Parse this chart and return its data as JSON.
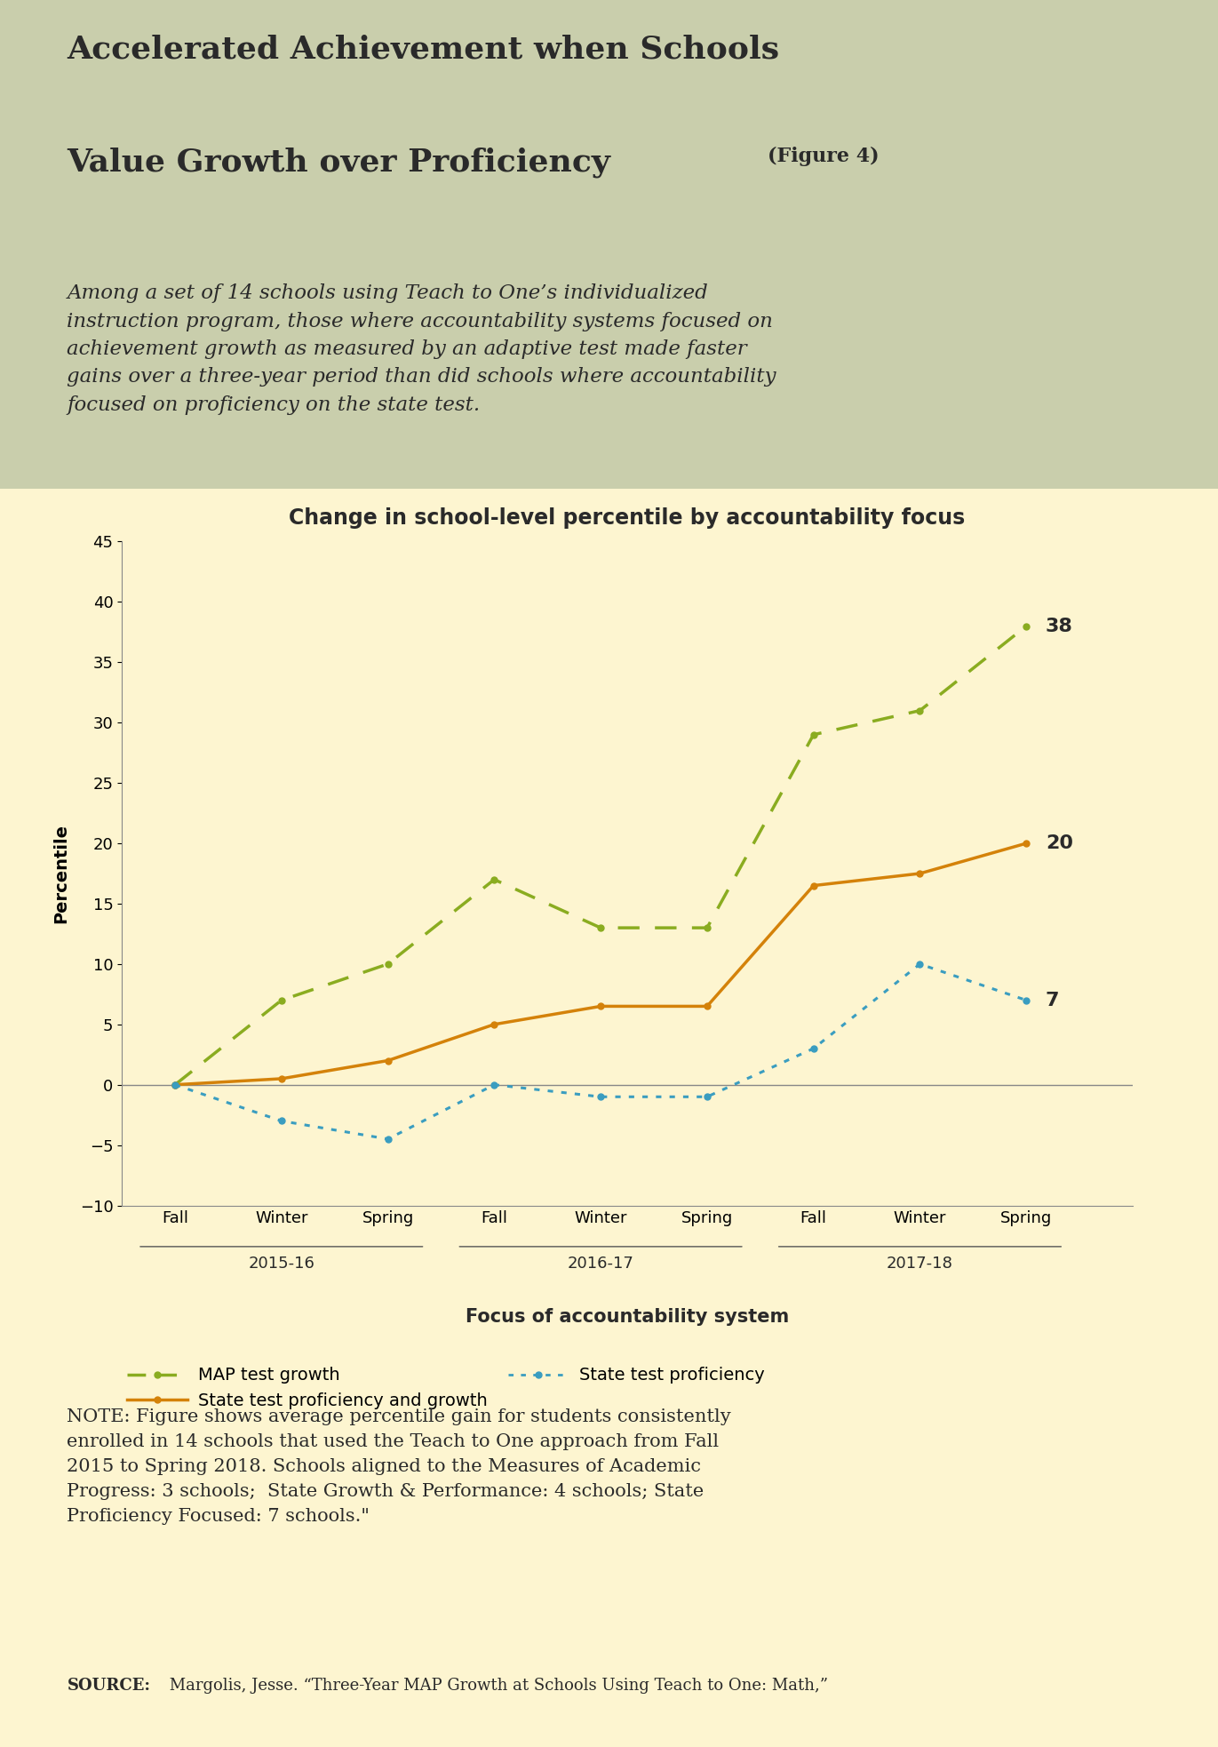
{
  "title_line1": "Accelerated Achievement when Schools",
  "title_line2": "Value Growth over Proficiency",
  "title_figure_tag": "(Figure 4)",
  "subtitle_lines": "Among a set of 14 schools using Teach to One’s individualized\ninstruction program, those where accountability systems focused on\nachievement growth as measured by an adaptive test made faster\ngains over a three-year period than did schools where accountability\nfocused on proficiency on the state test.",
  "chart_title": "Change in school-level percentile by accountability focus",
  "xlabel": "Focus of accountability system",
  "ylabel": "Percentile",
  "ylim": [
    -10,
    45
  ],
  "yticks": [
    -10,
    -5,
    0,
    5,
    10,
    15,
    20,
    25,
    30,
    35,
    40,
    45
  ],
  "x_labels": [
    "Fall",
    "Winter",
    "Spring",
    "Fall",
    "Winter",
    "Spring",
    "Fall",
    "Winter",
    "Spring"
  ],
  "x_year_labels": [
    "2015-16",
    "2016-17",
    "2017-18"
  ],
  "map_growth": [
    0,
    7,
    10,
    17,
    13,
    13,
    29,
    31,
    38
  ],
  "state_prof_growth": [
    0,
    0.5,
    2,
    5,
    6.5,
    6.5,
    16.5,
    17.5,
    20
  ],
  "state_prof": [
    0,
    -3,
    -4.5,
    0,
    -1,
    -1,
    3,
    10,
    7
  ],
  "map_color": "#8aac20",
  "state_pg_color": "#d4820a",
  "state_p_color": "#3a9dc0",
  "legend_map": "MAP test growth",
  "legend_spg": "State test proficiency and growth",
  "legend_sp": "State test proficiency",
  "note_bold": "NOTE:",
  "note_text": " Figure shows average percentile gain for students consistently\nenrolled in 14 schools that used the Teach to One approach from Fall\n2015 to Spring 2018. Schools aligned to the Measures of Academic\nProgress: 3 schools;  State Growth & Performance: 4 schools; State\nProficiency Focused: 7 schools.\"",
  "source_bold": "SOURCE:",
  "source_text": " Margolis, Jesse. “Three-Year MAP Growth at Schools Using Teach to One: Math,”",
  "header_bg": "#c9ceac",
  "chart_bg": "#fdf5d0",
  "text_color": "#2a2a2a"
}
